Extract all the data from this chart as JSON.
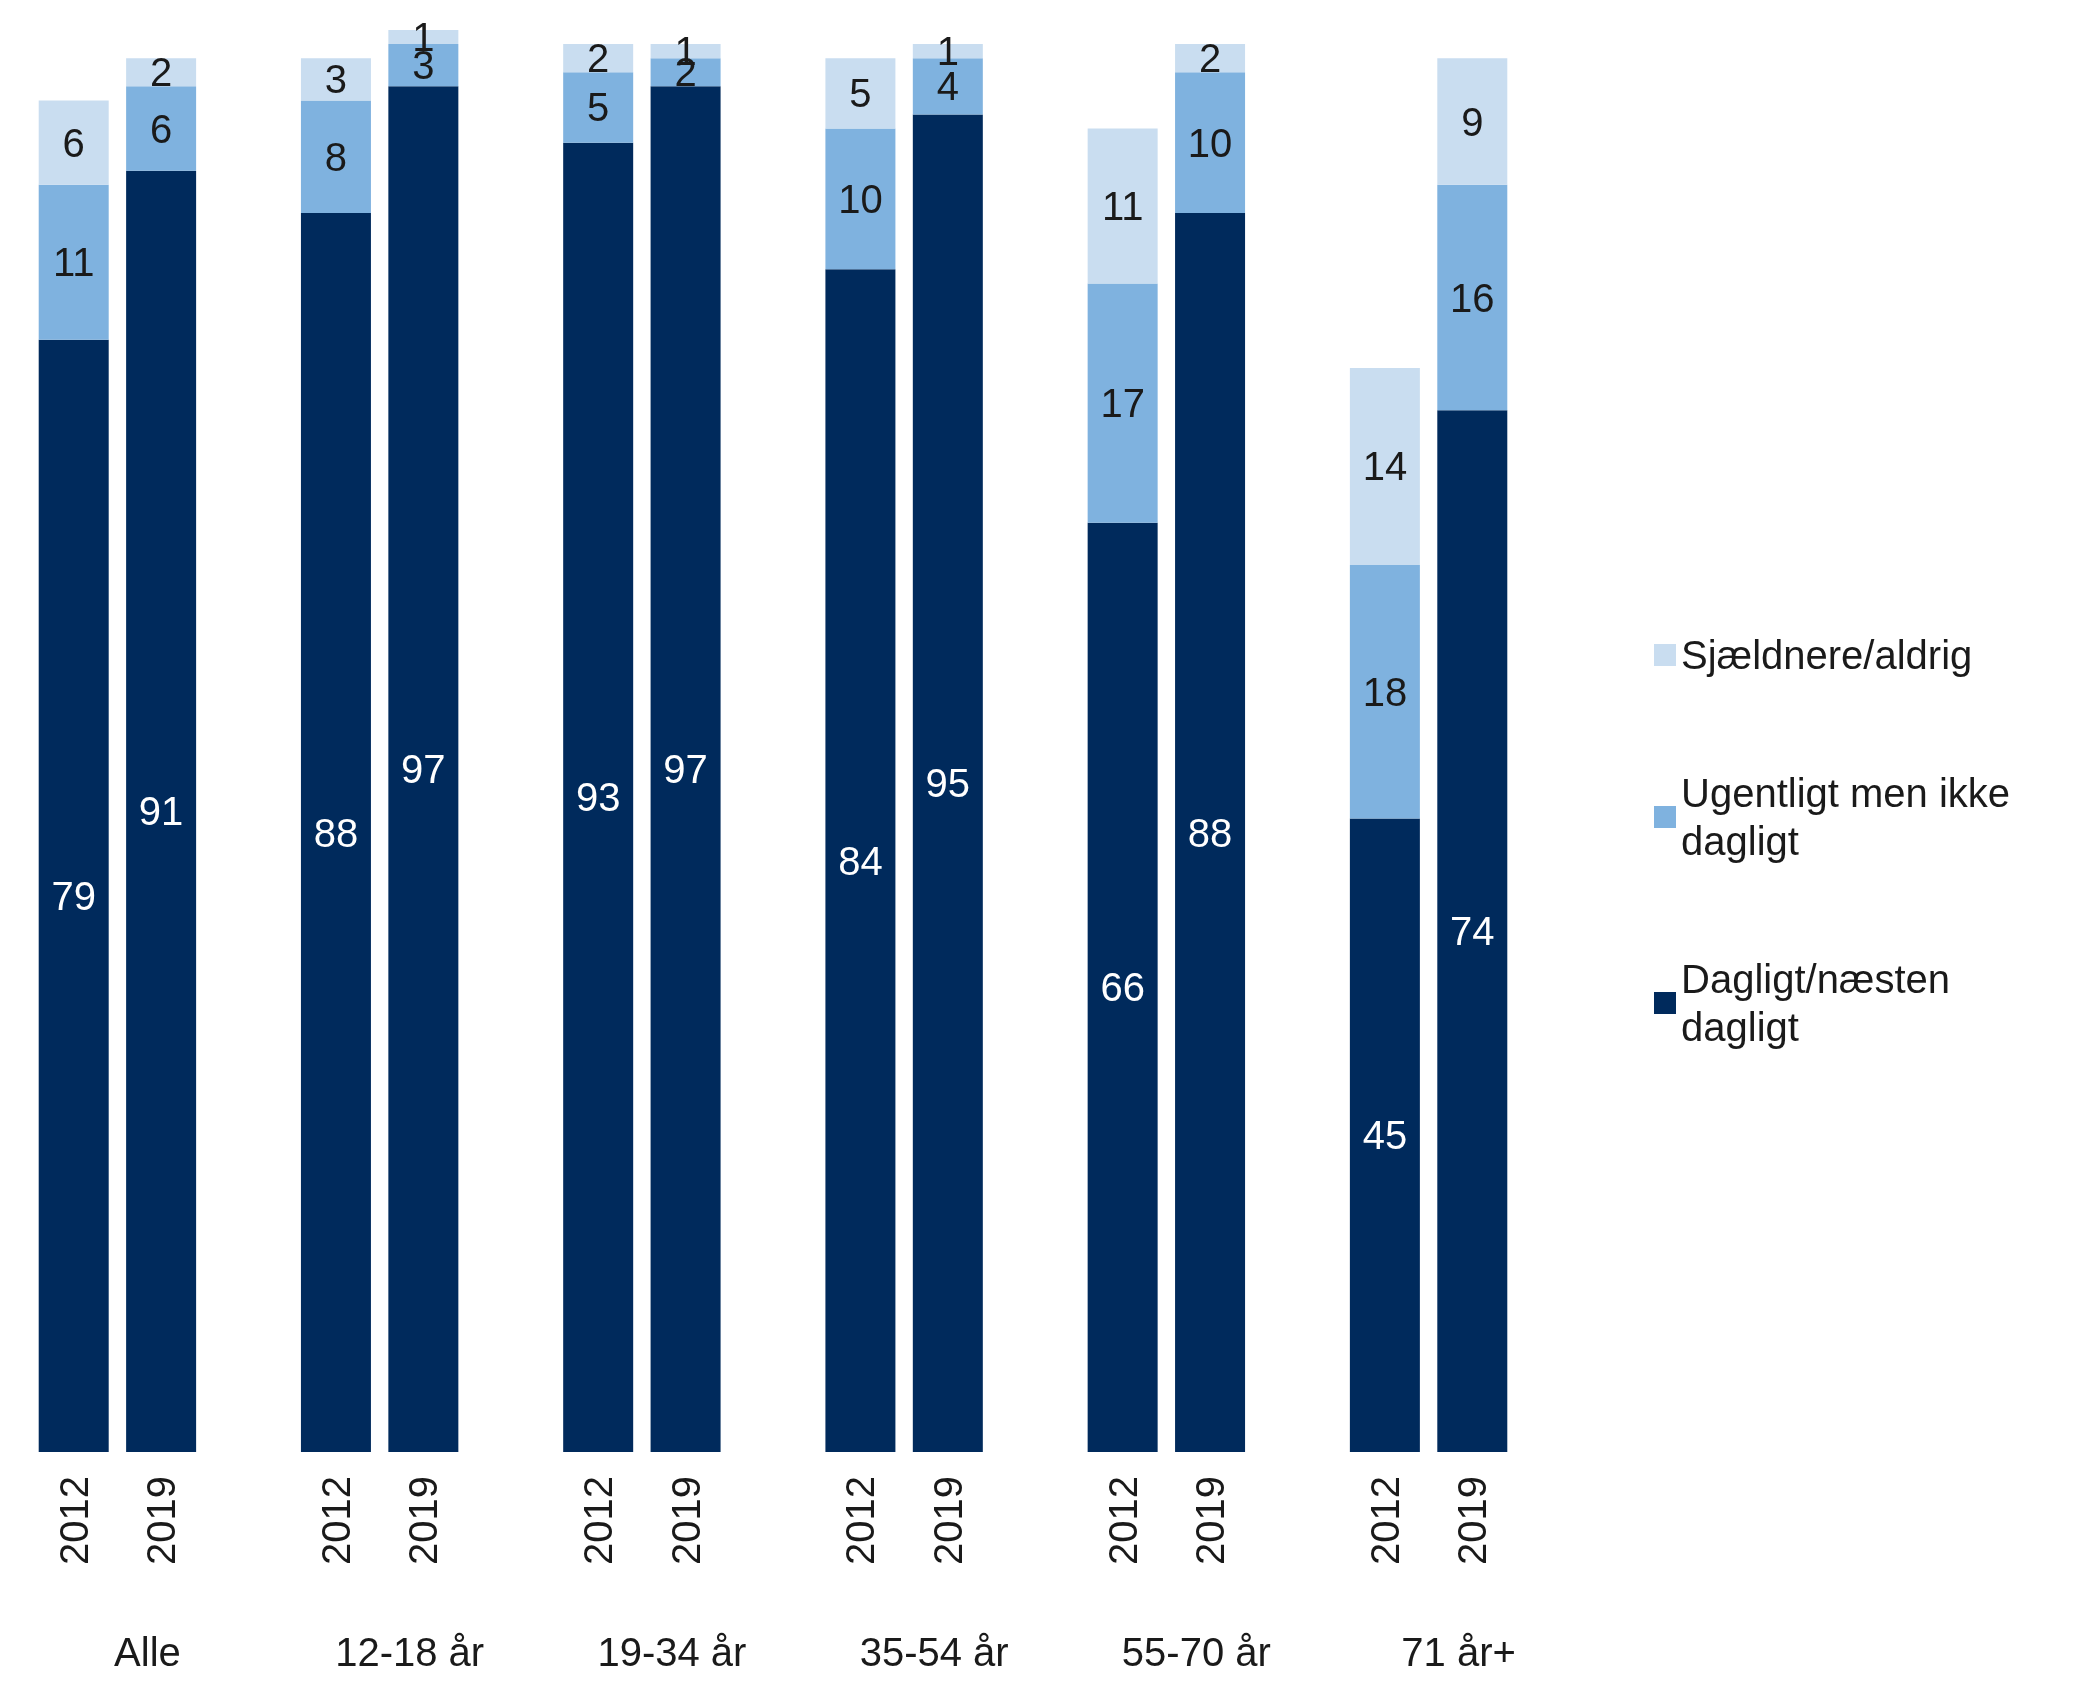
{
  "chart_data": {
    "type": "bar",
    "stacked": true,
    "data_labels": true,
    "legend": "right",
    "categories": [
      "2012",
      "2019",
      null,
      "2012",
      "2019",
      null,
      "2012",
      "2019",
      null,
      "2012",
      "2019",
      null,
      "2012",
      "2019",
      null,
      "2012",
      "2019"
    ],
    "annotations": [
      "Alle",
      "12-18 år",
      "19-34 år",
      "35-54 år",
      "55-70 år",
      "71 år+"
    ],
    "series": [
      {
        "name": "Dagligt/næsten dagligt",
        "color": "#002a5c",
        "values": [
          79,
          91,
          null,
          88,
          97,
          null,
          93,
          97,
          null,
          84,
          95,
          null,
          66,
          88,
          null,
          45,
          74
        ]
      },
      {
        "name": "Ugentligt men ikke dagligt",
        "color": "#7fb2df",
        "values": [
          11,
          6,
          null,
          8,
          3,
          null,
          5,
          2,
          null,
          10,
          4,
          null,
          17,
          10,
          null,
          18,
          16
        ]
      },
      {
        "name": "Sjældnere/aldrig",
        "color": "#c9ddf0",
        "values": [
          6,
          2,
          null,
          3,
          1,
          null,
          2,
          1,
          null,
          5,
          1,
          null,
          11,
          2,
          null,
          14,
          9
        ]
      }
    ]
  }
}
